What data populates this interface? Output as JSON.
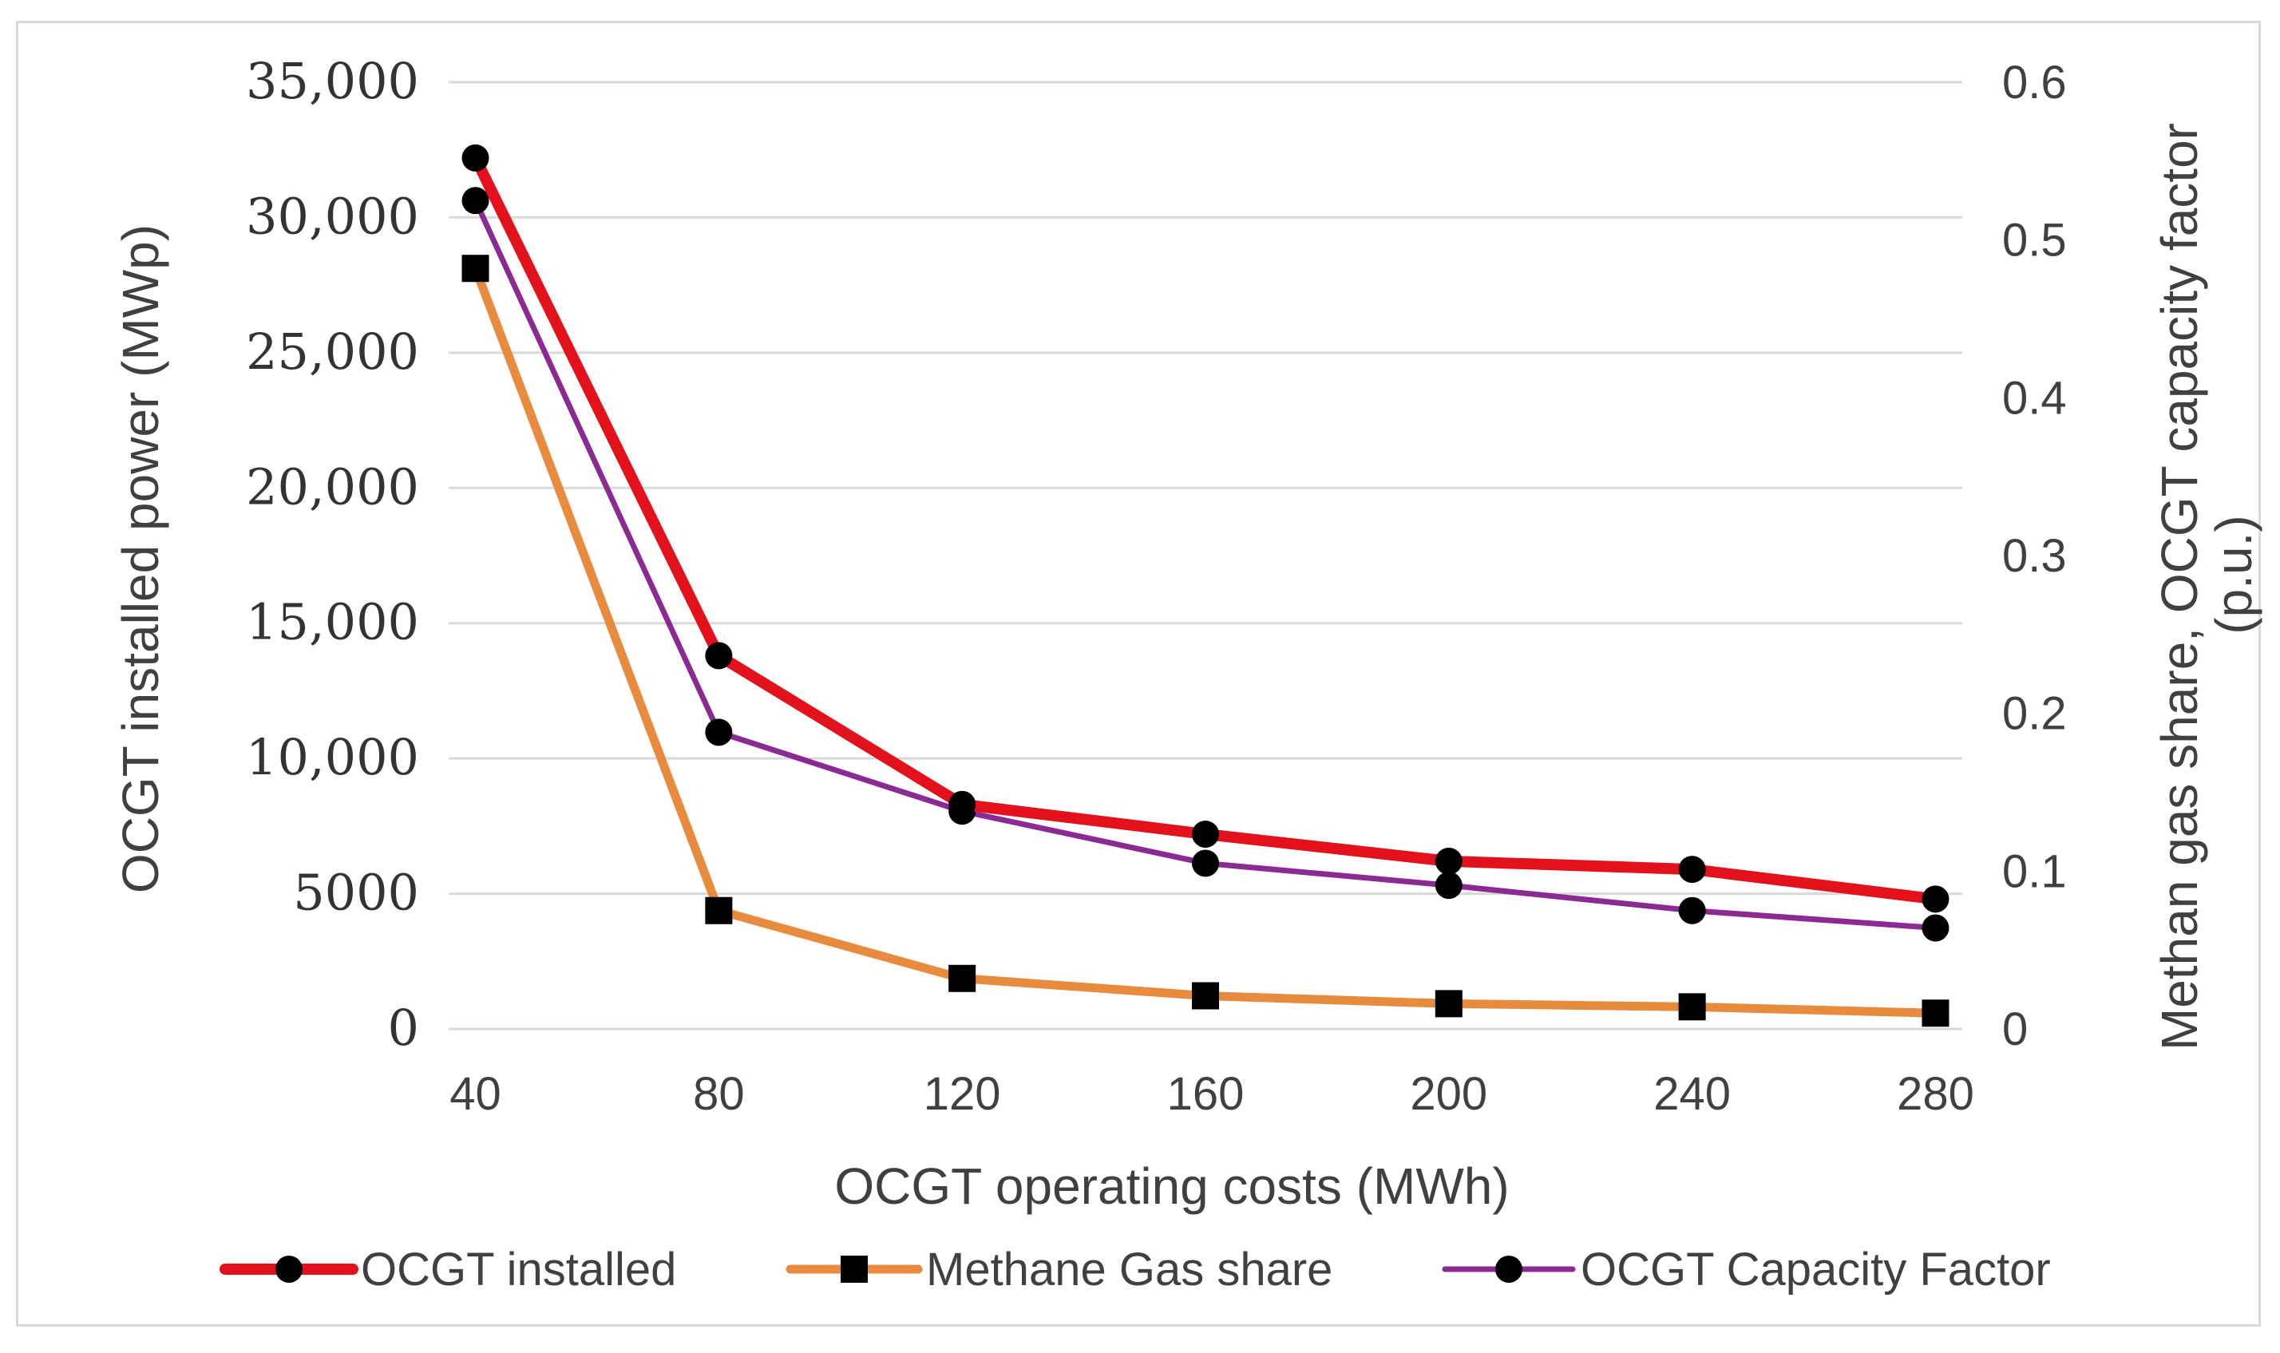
{
  "chart_data": {
    "type": "line",
    "title": "",
    "xlabel": "OCGT operating costs (MWh)",
    "ylabel_left": "OCGT installed power (MWp)",
    "ylabel_right": "Methan gas share, OCGT capacity factor (p.u.)",
    "x": [
      40,
      80,
      120,
      160,
      200,
      240,
      280
    ],
    "x_tick_labels": [
      "40",
      "80",
      "120",
      "160",
      "200",
      "240",
      "280"
    ],
    "ylim_left": [
      0,
      35000
    ],
    "ylim_right": [
      0,
      0.6
    ],
    "y_left_tick_values": [
      0,
      5000,
      10000,
      15000,
      20000,
      25000,
      30000,
      35000
    ],
    "y_left_tick_labels": [
      "0",
      "5000",
      "10,000",
      "15,000",
      "20,000",
      "25,000",
      "30,000",
      "35,000"
    ],
    "y_right_tick_values": [
      0,
      0.1,
      0.2,
      0.3,
      0.4,
      0.5,
      0.6
    ],
    "y_right_tick_labels": [
      "0",
      "0.1",
      "0.2",
      "0.3",
      "0.4",
      "0.5",
      "0.6"
    ],
    "grid": true,
    "legend_position": "bottom",
    "series": [
      {
        "name": "OCGT installed",
        "axis": "left",
        "color": "#e3111b",
        "marker": "circle",
        "values": [
          32200,
          13800,
          8300,
          7200,
          6200,
          5900,
          4800
        ]
      },
      {
        "name": "Methane Gas share",
        "axis": "right",
        "color": "#e98b3f",
        "marker": "square",
        "values": [
          0.482,
          0.075,
          0.032,
          0.021,
          0.016,
          0.014,
          0.01
        ]
      },
      {
        "name": "OCGT Capacity Factor",
        "axis": "right",
        "color": "#8b2a93",
        "marker": "circle",
        "values": [
          0.525,
          0.188,
          0.138,
          0.105,
          0.091,
          0.075,
          0.064
        ]
      }
    ]
  }
}
